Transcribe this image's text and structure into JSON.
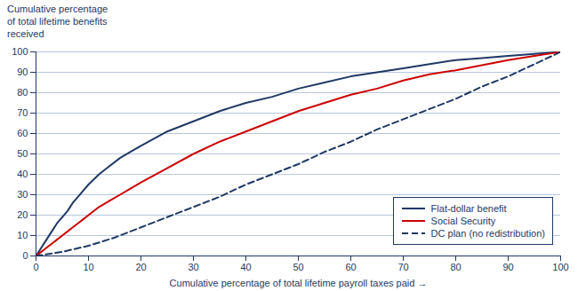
{
  "chart_data": {
    "type": "line",
    "ylabel": "Cumulative percentage\nof total lifetime benefits\nreceived",
    "xlabel": "Cumulative percentage of total lifetime payroll taxes paid",
    "xlim": [
      0,
      100
    ],
    "ylim": [
      0,
      100
    ],
    "xticks": [
      0,
      10,
      20,
      30,
      40,
      50,
      60,
      70,
      80,
      90,
      100
    ],
    "yticks": [
      0,
      10,
      20,
      30,
      40,
      50,
      60,
      70,
      80,
      90,
      100
    ],
    "grid": "y",
    "legend": "lower right",
    "series": [
      {
        "name": "Flat-dollar benefit",
        "color": "#1f3864",
        "line_style": "solid",
        "x": [
          0,
          1,
          2,
          3,
          4,
          5,
          6,
          7,
          8,
          9,
          10,
          12,
          14,
          16,
          18,
          20,
          25,
          30,
          35,
          40,
          45,
          50,
          55,
          60,
          65,
          70,
          75,
          80,
          85,
          90,
          95,
          100
        ],
        "values": [
          0,
          4,
          8,
          12,
          16,
          19,
          22,
          26,
          29,
          32,
          35,
          40,
          44,
          48,
          51,
          54,
          61,
          66,
          71,
          75,
          78,
          82,
          85,
          88,
          90,
          92,
          94,
          96,
          97,
          98,
          99,
          100
        ]
      },
      {
        "name": "Social Security",
        "color": "#cc0000",
        "line_style": "solid",
        "x": [
          0,
          1,
          2,
          3,
          4,
          5,
          6,
          7,
          8,
          9,
          10,
          12,
          14,
          16,
          18,
          20,
          25,
          30,
          35,
          40,
          45,
          50,
          55,
          60,
          65,
          70,
          75,
          80,
          85,
          90,
          95,
          100
        ],
        "values": [
          0,
          2,
          4,
          6,
          8,
          10,
          12,
          14,
          16,
          18,
          20,
          24,
          27,
          30,
          33,
          36,
          43,
          50,
          56,
          61,
          66,
          71,
          75,
          79,
          82,
          86,
          89,
          91,
          93.5,
          96,
          98,
          100
        ]
      },
      {
        "name": "DC plan (no redistribution)",
        "color": "#1f3864",
        "line_style": "dashed",
        "x": [
          0,
          5,
          10,
          15,
          20,
          25,
          30,
          35,
          40,
          45,
          50,
          55,
          60,
          65,
          70,
          75,
          80,
          85,
          90,
          95,
          100
        ],
        "values": [
          0,
          2,
          5,
          9,
          14,
          19,
          24,
          29,
          35,
          40,
          45,
          51,
          56,
          62,
          67,
          72,
          77,
          83,
          88,
          94,
          100
        ]
      }
    ]
  }
}
